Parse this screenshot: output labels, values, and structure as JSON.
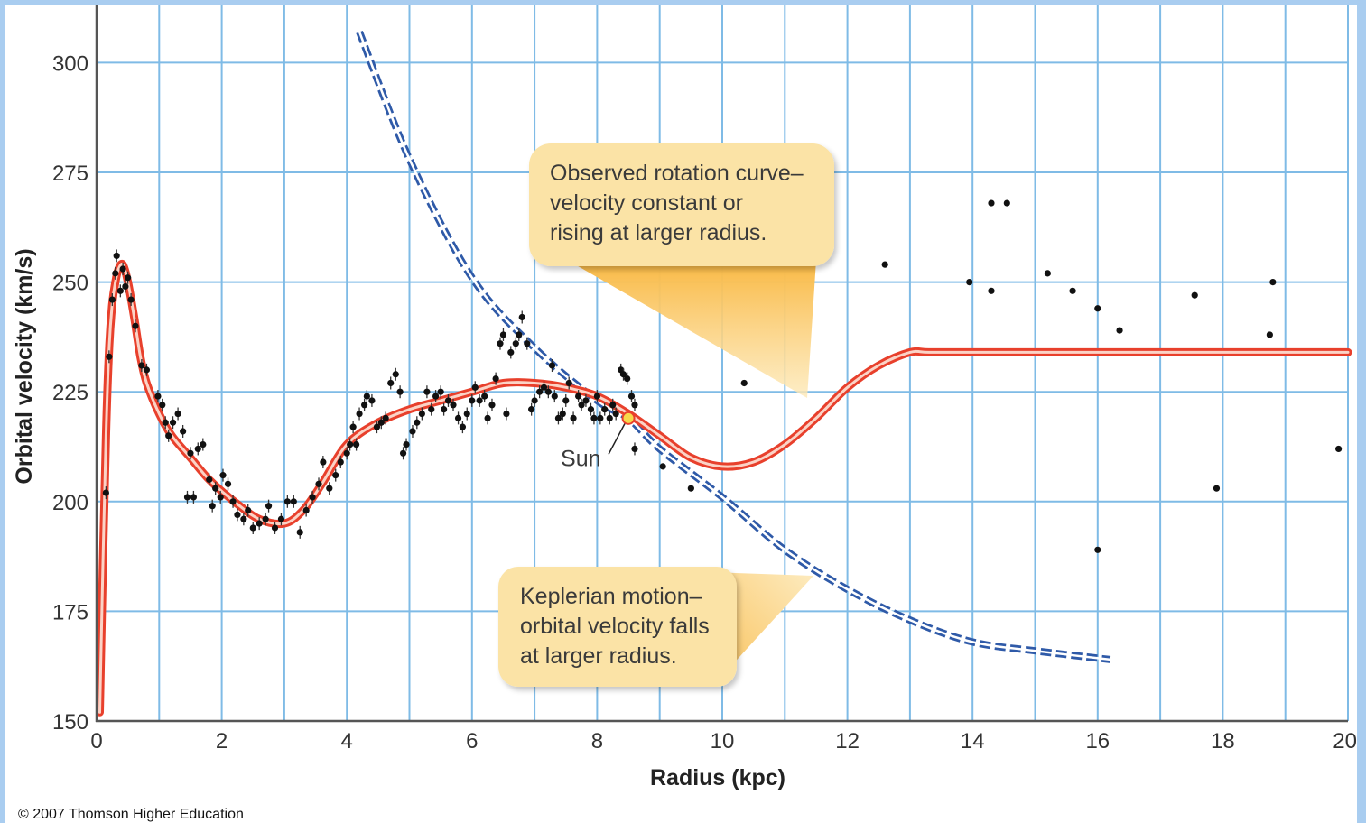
{
  "copyright": "© 2007 Thomson Higher Education",
  "chart_data": {
    "type": "line",
    "title": "",
    "xlabel": "Radius (kpc)",
    "ylabel": "Orbital velocity (km/s)",
    "xlim": [
      0,
      20
    ],
    "ylim": [
      150,
      310
    ],
    "x_ticks": [
      "0",
      "2",
      "4",
      "6",
      "8",
      "10",
      "12",
      "14",
      "16",
      "18",
      "20"
    ],
    "y_ticks": [
      "150",
      "175",
      "200",
      "225",
      "250",
      "275",
      "300"
    ],
    "grid": true,
    "colors": {
      "grid": "#7fbbe6",
      "observed": "#e8402c",
      "keplerian": "#2f5aa8",
      "points": "#111111",
      "callout": "#fbe3a6",
      "sun": "#f7d84a"
    },
    "series": [
      {
        "kind": "observed-curve",
        "x": [
          0.05,
          0.1,
          0.15,
          0.2,
          0.25,
          0.3,
          0.35,
          0.42,
          0.5,
          0.6,
          0.7,
          0.8,
          1.0,
          1.2,
          1.5,
          1.8,
          2.2,
          2.6,
          3.0,
          3.3,
          3.6,
          4.0,
          4.5,
          5.0,
          5.5,
          6.0,
          6.5,
          7.0,
          7.5,
          8.0,
          8.5,
          9.0,
          9.5,
          10.0,
          10.5,
          11.0,
          11.5,
          12.0,
          12.5,
          13.0,
          13.3,
          14,
          16,
          18,
          20
        ],
        "y": [
          152,
          185,
          215,
          235,
          245,
          250,
          253,
          254,
          250,
          242,
          233,
          227,
          220,
          215,
          210,
          205,
          200,
          196,
          195,
          198,
          204,
          213,
          218,
          221,
          223,
          225,
          227,
          227,
          226,
          224,
          220,
          215,
          210,
          208,
          209,
          213,
          219,
          226,
          231,
          234,
          234,
          234,
          234,
          234,
          234
        ]
      },
      {
        "kind": "keplerian-curve",
        "x": [
          4.2,
          5,
          6,
          7,
          8,
          8.5,
          9,
          10,
          11,
          12,
          13,
          14,
          15,
          16.2
        ],
        "y": [
          307,
          278,
          251,
          235,
          223,
          219,
          212,
          201,
          189,
          180,
          173,
          168,
          166,
          164
        ]
      }
    ],
    "points": [
      {
        "x": 0.15,
        "y": 202
      },
      {
        "x": 0.2,
        "y": 233
      },
      {
        "x": 0.25,
        "y": 246
      },
      {
        "x": 0.3,
        "y": 252
      },
      {
        "x": 0.32,
        "y": 256
      },
      {
        "x": 0.38,
        "y": 248
      },
      {
        "x": 0.42,
        "y": 253
      },
      {
        "x": 0.46,
        "y": 249
      },
      {
        "x": 0.5,
        "y": 251
      },
      {
        "x": 0.55,
        "y": 246
      },
      {
        "x": 0.62,
        "y": 240
      },
      {
        "x": 0.72,
        "y": 231
      },
      {
        "x": 0.8,
        "y": 230
      },
      {
        "x": 0.98,
        "y": 224
      },
      {
        "x": 1.05,
        "y": 222
      },
      {
        "x": 1.1,
        "y": 218
      },
      {
        "x": 1.15,
        "y": 215
      },
      {
        "x": 1.22,
        "y": 218
      },
      {
        "x": 1.3,
        "y": 220
      },
      {
        "x": 1.38,
        "y": 216
      },
      {
        "x": 1.45,
        "y": 201
      },
      {
        "x": 1.5,
        "y": 211
      },
      {
        "x": 1.55,
        "y": 201
      },
      {
        "x": 1.62,
        "y": 212
      },
      {
        "x": 1.7,
        "y": 213
      },
      {
        "x": 1.8,
        "y": 205
      },
      {
        "x": 1.85,
        "y": 199
      },
      {
        "x": 1.9,
        "y": 203
      },
      {
        "x": 1.98,
        "y": 201
      },
      {
        "x": 2.02,
        "y": 206
      },
      {
        "x": 2.1,
        "y": 204
      },
      {
        "x": 2.18,
        "y": 200
      },
      {
        "x": 2.25,
        "y": 197
      },
      {
        "x": 2.35,
        "y": 196
      },
      {
        "x": 2.42,
        "y": 198
      },
      {
        "x": 2.5,
        "y": 194
      },
      {
        "x": 2.6,
        "y": 195
      },
      {
        "x": 2.7,
        "y": 196
      },
      {
        "x": 2.75,
        "y": 199
      },
      {
        "x": 2.85,
        "y": 194
      },
      {
        "x": 2.95,
        "y": 196
      },
      {
        "x": 3.05,
        "y": 200
      },
      {
        "x": 3.15,
        "y": 200
      },
      {
        "x": 3.25,
        "y": 193
      },
      {
        "x": 3.35,
        "y": 198
      },
      {
        "x": 3.45,
        "y": 201
      },
      {
        "x": 3.55,
        "y": 204
      },
      {
        "x": 3.62,
        "y": 209
      },
      {
        "x": 3.72,
        "y": 203
      },
      {
        "x": 3.82,
        "y": 206
      },
      {
        "x": 3.9,
        "y": 209
      },
      {
        "x": 4.0,
        "y": 211
      },
      {
        "x": 4.05,
        "y": 213
      },
      {
        "x": 4.1,
        "y": 217
      },
      {
        "x": 4.15,
        "y": 213
      },
      {
        "x": 4.2,
        "y": 220
      },
      {
        "x": 4.28,
        "y": 222
      },
      {
        "x": 4.32,
        "y": 224
      },
      {
        "x": 4.4,
        "y": 223
      },
      {
        "x": 4.48,
        "y": 217
      },
      {
        "x": 4.55,
        "y": 218
      },
      {
        "x": 4.62,
        "y": 219
      },
      {
        "x": 4.7,
        "y": 227
      },
      {
        "x": 4.78,
        "y": 229
      },
      {
        "x": 4.85,
        "y": 225
      },
      {
        "x": 4.9,
        "y": 211
      },
      {
        "x": 4.95,
        "y": 213
      },
      {
        "x": 5.05,
        "y": 216
      },
      {
        "x": 5.12,
        "y": 218
      },
      {
        "x": 5.2,
        "y": 220
      },
      {
        "x": 5.28,
        "y": 225
      },
      {
        "x": 5.35,
        "y": 221
      },
      {
        "x": 5.42,
        "y": 224
      },
      {
        "x": 5.5,
        "y": 225
      },
      {
        "x": 5.55,
        "y": 221
      },
      {
        "x": 5.62,
        "y": 223
      },
      {
        "x": 5.7,
        "y": 222
      },
      {
        "x": 5.78,
        "y": 219
      },
      {
        "x": 5.85,
        "y": 217
      },
      {
        "x": 5.92,
        "y": 220
      },
      {
        "x": 6.0,
        "y": 223
      },
      {
        "x": 6.05,
        "y": 226
      },
      {
        "x": 6.12,
        "y": 223
      },
      {
        "x": 6.2,
        "y": 224
      },
      {
        "x": 6.25,
        "y": 219
      },
      {
        "x": 6.32,
        "y": 222
      },
      {
        "x": 6.38,
        "y": 228
      },
      {
        "x": 6.45,
        "y": 236
      },
      {
        "x": 6.5,
        "y": 238
      },
      {
        "x": 6.55,
        "y": 220
      },
      {
        "x": 6.62,
        "y": 234
      },
      {
        "x": 6.7,
        "y": 236
      },
      {
        "x": 6.75,
        "y": 238
      },
      {
        "x": 6.8,
        "y": 242
      },
      {
        "x": 6.88,
        "y": 236
      },
      {
        "x": 6.95,
        "y": 221
      },
      {
        "x": 7.0,
        "y": 223
      },
      {
        "x": 7.08,
        "y": 225
      },
      {
        "x": 7.15,
        "y": 226
      },
      {
        "x": 7.22,
        "y": 225
      },
      {
        "x": 7.28,
        "y": 231
      },
      {
        "x": 7.32,
        "y": 224
      },
      {
        "x": 7.38,
        "y": 219
      },
      {
        "x": 7.45,
        "y": 220
      },
      {
        "x": 7.5,
        "y": 223
      },
      {
        "x": 7.55,
        "y": 227
      },
      {
        "x": 7.62,
        "y": 219
      },
      {
        "x": 7.7,
        "y": 224
      },
      {
        "x": 7.75,
        "y": 222
      },
      {
        "x": 7.82,
        "y": 223
      },
      {
        "x": 7.9,
        "y": 221
      },
      {
        "x": 7.95,
        "y": 219
      },
      {
        "x": 8.0,
        "y": 224
      },
      {
        "x": 8.05,
        "y": 219
      },
      {
        "x": 8.12,
        "y": 221
      },
      {
        "x": 8.2,
        "y": 219
      },
      {
        "x": 8.25,
        "y": 222
      },
      {
        "x": 8.3,
        "y": 220
      },
      {
        "x": 8.38,
        "y": 230
      },
      {
        "x": 8.42,
        "y": 229
      },
      {
        "x": 8.48,
        "y": 228
      },
      {
        "x": 8.55,
        "y": 224
      },
      {
        "x": 8.6,
        "y": 222
      },
      {
        "x": 8.6,
        "y": 212
      },
      {
        "x": 9.05,
        "y": 208
      },
      {
        "x": 9.5,
        "y": 203
      },
      {
        "x": 10.35,
        "y": 227
      },
      {
        "x": 12.6,
        "y": 254
      },
      {
        "x": 13.95,
        "y": 250
      },
      {
        "x": 14.3,
        "y": 248
      },
      {
        "x": 14.3,
        "y": 268
      },
      {
        "x": 14.55,
        "y": 268
      },
      {
        "x": 15.2,
        "y": 252
      },
      {
        "x": 15.6,
        "y": 248
      },
      {
        "x": 16.0,
        "y": 244
      },
      {
        "x": 16.0,
        "y": 189
      },
      {
        "x": 16.35,
        "y": 239
      },
      {
        "x": 17.55,
        "y": 247
      },
      {
        "x": 17.9,
        "y": 203
      },
      {
        "x": 18.75,
        "y": 238
      },
      {
        "x": 18.8,
        "y": 250
      },
      {
        "x": 19.85,
        "y": 212
      }
    ],
    "sun": {
      "x": 8.5,
      "y": 219,
      "label": "Sun"
    },
    "annotations": [
      {
        "kind": "observed-note",
        "lines": [
          "Observed rotation curve–",
          "velocity constant or",
          "rising at larger radius."
        ]
      },
      {
        "kind": "keplerian-note",
        "lines": [
          "Keplerian motion–",
          "orbital velocity falls",
          "at larger radius."
        ]
      }
    ]
  }
}
